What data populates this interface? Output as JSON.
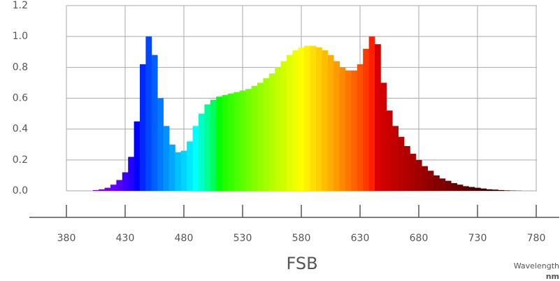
{
  "chart_data": {
    "type": "bar",
    "title": "FSB",
    "xlabel": "Wavelength",
    "xunit": "nm",
    "x": [
      400,
      405,
      410,
      415,
      420,
      425,
      430,
      435,
      440,
      445,
      450,
      455,
      460,
      465,
      470,
      475,
      480,
      485,
      490,
      495,
      500,
      505,
      510,
      515,
      520,
      525,
      530,
      535,
      540,
      545,
      550,
      555,
      560,
      565,
      570,
      575,
      580,
      585,
      590,
      595,
      600,
      605,
      610,
      615,
      620,
      625,
      630,
      635,
      640,
      645,
      650,
      655,
      660,
      665,
      670,
      675,
      680,
      685,
      690,
      695,
      700,
      705,
      710,
      715,
      720,
      725,
      730,
      735,
      740,
      745,
      750,
      755,
      760,
      765,
      770
    ],
    "values": [
      0,
      0.005,
      0.01,
      0.02,
      0.04,
      0.07,
      0.12,
      0.22,
      0.45,
      0.82,
      1.0,
      0.88,
      0.6,
      0.42,
      0.3,
      0.25,
      0.26,
      0.32,
      0.42,
      0.5,
      0.56,
      0.59,
      0.61,
      0.62,
      0.63,
      0.64,
      0.65,
      0.66,
      0.68,
      0.7,
      0.73,
      0.76,
      0.8,
      0.84,
      0.88,
      0.91,
      0.93,
      0.94,
      0.94,
      0.93,
      0.91,
      0.88,
      0.84,
      0.8,
      0.78,
      0.78,
      0.82,
      0.92,
      1.0,
      0.95,
      0.7,
      0.52,
      0.42,
      0.35,
      0.29,
      0.24,
      0.2,
      0.16,
      0.13,
      0.1,
      0.08,
      0.065,
      0.05,
      0.04,
      0.03,
      0.025,
      0.02,
      0.015,
      0.01,
      0.008,
      0.005,
      0.003,
      0.002,
      0.001,
      0
    ],
    "xlim": [
      380,
      780
    ],
    "xticks": [
      380,
      430,
      480,
      530,
      580,
      630,
      680,
      730,
      780
    ],
    "ylim": [
      0,
      1.2
    ],
    "yticks": [
      {
        "value": 0,
        "label": "0.0"
      },
      {
        "value": 0.2,
        "label": "0.2"
      },
      {
        "value": 0.4,
        "label": "0.4"
      },
      {
        "value": 0.6,
        "label": "0.6"
      },
      {
        "value": 0.8,
        "label": "0.8"
      },
      {
        "value": 1,
        "label": "1.0"
      },
      {
        "value": 1.2,
        "label": "1.2"
      }
    ],
    "grid": true
  }
}
